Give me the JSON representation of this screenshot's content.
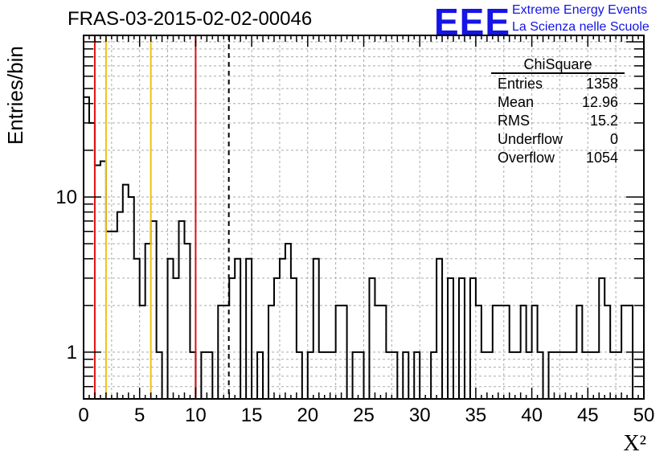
{
  "title": "FRAS-03-2015-02-02-00046",
  "logo": {
    "mark": "EEE",
    "line1": "Extreme Energy Events",
    "line2": "La Scienza nelle Scuole",
    "color": "#1414e6"
  },
  "stats": {
    "name": "ChiSquare",
    "rows": [
      {
        "label": "Entries",
        "value": "1358"
      },
      {
        "label": "Mean",
        "value": "12.96"
      },
      {
        "label": "RMS",
        "value": "15.2"
      },
      {
        "label": "Underflow",
        "value": "0"
      },
      {
        "label": "Overflow",
        "value": "1054"
      }
    ]
  },
  "chart_data": {
    "type": "histogram",
    "title": "FRAS-03-2015-02-02-00046",
    "xlabel": "X²",
    "ylabel": "Entries/bin",
    "xlim": [
      0,
      50
    ],
    "ylim": [
      0.5,
      110
    ],
    "yscale": "log",
    "grid": true,
    "bin_width": 0.5,
    "x_ticks": [
      "0",
      "5",
      "10",
      "15",
      "20",
      "25",
      "30",
      "35",
      "40",
      "45",
      "50"
    ],
    "y_ticks": [
      "1",
      "10"
    ],
    "values": [
      44,
      30,
      16,
      17,
      6,
      6,
      8,
      12,
      10,
      4,
      2,
      5,
      7,
      1,
      0,
      4,
      3,
      7,
      5,
      1,
      0,
      1,
      1,
      0,
      2,
      2,
      3,
      4,
      0,
      4,
      0,
      1,
      0,
      2,
      3,
      4,
      5,
      3,
      1,
      0,
      1,
      4,
      1,
      1,
      1,
      2,
      2,
      0,
      1,
      1,
      0,
      3,
      2,
      2,
      1,
      1,
      0,
      1,
      0,
      1,
      0,
      0,
      1,
      4,
      0,
      3,
      0,
      3,
      0,
      3,
      2,
      1,
      1,
      2,
      2,
      2,
      1,
      1,
      2,
      1,
      2,
      1,
      0,
      1,
      1,
      1,
      1,
      1,
      2,
      1,
      1,
      1,
      3,
      2,
      1,
      1,
      2,
      2
    ],
    "vertical_lines": [
      {
        "x": 1,
        "color": "#e01010",
        "style": "solid"
      },
      {
        "x": 2,
        "color": "#f0c010",
        "style": "solid"
      },
      {
        "x": 6,
        "color": "#f0c010",
        "style": "solid"
      },
      {
        "x": 10,
        "color": "#e01010",
        "style": "solid"
      },
      {
        "x": 12.96,
        "color": "#000000",
        "style": "dashed"
      }
    ]
  }
}
